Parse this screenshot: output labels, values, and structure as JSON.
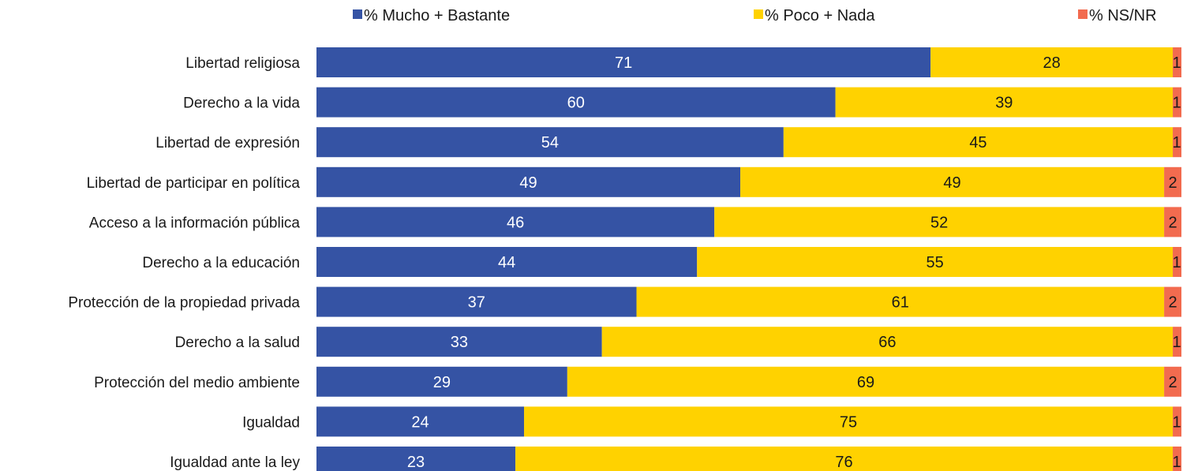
{
  "chart_data": {
    "type": "bar",
    "orientation": "horizontal",
    "stacked": true,
    "title": "",
    "xlabel": "",
    "ylabel": "",
    "xlim": [
      0,
      100
    ],
    "grid": false,
    "legend_position": "top",
    "categories": [
      "Libertad religiosa",
      "Derecho a la vida",
      "Libertad de expresión",
      "Libertad de participar en política",
      "Acceso a la información pública",
      "Derecho a la educación",
      "Protección de la propiedad privada",
      "Derecho a la salud",
      "Protección del medio ambiente",
      "Igualdad",
      "Igualdad ante la ley"
    ],
    "series": [
      {
        "name": "% Mucho + Bastante",
        "color": "#3553a4",
        "label_color": "#ffffff",
        "values": [
          71,
          60,
          54,
          49,
          46,
          44,
          37,
          33,
          29,
          24,
          23
        ]
      },
      {
        "name": "% Poco + Nada",
        "color": "#ffd200",
        "label_color": "#1a1a1a",
        "values": [
          28,
          39,
          45,
          49,
          52,
          55,
          61,
          66,
          69,
          75,
          76
        ]
      },
      {
        "name": "% NS/NR",
        "color": "#f26b4f",
        "label_color": "#1a1a1a",
        "values": [
          1,
          1,
          1,
          2,
          2,
          1,
          2,
          1,
          2,
          1,
          1
        ]
      }
    ]
  }
}
